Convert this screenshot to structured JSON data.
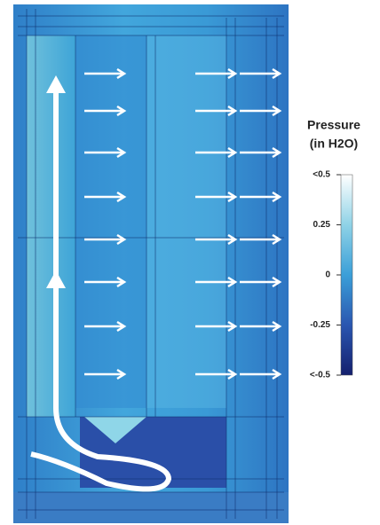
{
  "colorbar": {
    "title": [
      "Pressure",
      "(in H2O)"
    ],
    "lim": [
      -0.5,
      0.5
    ],
    "ticks": [
      {
        "value": 0.5,
        "label": "<0.5"
      },
      0.25,
      0,
      -0.25,
      {
        "value": -0.5,
        "label": "<-0.5"
      }
    ]
  }
}
